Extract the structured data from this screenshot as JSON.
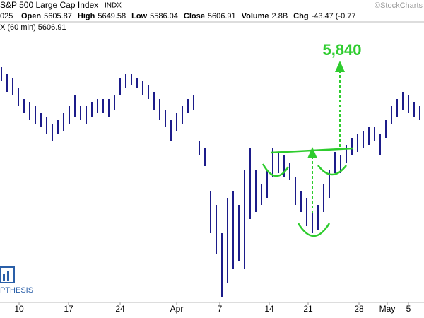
{
  "chart_data": {
    "type": "hilo",
    "title": "S&P 500 Large Cap Index",
    "exchange": "INDX",
    "watermark": "©StockCharts",
    "date_fragment": "025",
    "quote": [
      {
        "label": "Open",
        "value": "5605.87"
      },
      {
        "label": "High",
        "value": "5649.58"
      },
      {
        "label": "Low",
        "value": "5586.04"
      },
      {
        "label": "Close",
        "value": "5606.91"
      },
      {
        "label": "Volume",
        "value": "2.8B"
      },
      {
        "label": "Chg",
        "value": "-43.47 (-0.77"
      }
    ],
    "series_label": "X (60 min) 5606.91",
    "annotation": "5,840",
    "logo_text": "PTHESIS",
    "color": "#1c1c8a",
    "x": [
      0,
      1,
      2,
      3,
      4,
      5,
      6,
      7,
      8,
      9,
      10,
      11,
      12,
      13,
      14,
      15,
      16,
      17,
      18,
      19,
      20,
      21,
      22,
      23,
      24,
      25,
      26,
      27,
      28,
      29,
      30,
      31,
      32,
      33,
      34,
      35,
      36,
      37,
      38,
      39,
      40,
      41,
      42,
      43,
      44,
      45,
      46,
      47,
      48,
      49,
      50,
      51,
      52,
      53,
      54,
      55,
      56,
      57,
      58,
      59,
      60,
      61,
      62,
      63,
      64,
      65,
      66,
      67,
      68,
      69,
      70,
      71,
      72,
      73,
      74
    ],
    "highs": [
      5790,
      5760,
      5745,
      5700,
      5655,
      5640,
      5625,
      5595,
      5580,
      5550,
      5565,
      5595,
      5625,
      5670,
      5625,
      5625,
      5640,
      5655,
      5655,
      5655,
      5670,
      5745,
      5760,
      5760,
      5745,
      5730,
      5715,
      5685,
      5655,
      5610,
      5565,
      5595,
      5625,
      5655,
      5670,
      5475,
      5445,
      5265,
      5205,
      5085,
      5235,
      5265,
      5205,
      5355,
      5445,
      5355,
      5295,
      5355,
      5445,
      5430,
      5415,
      5385,
      5325,
      5265,
      5235,
      5175,
      5205,
      5295,
      5355,
      5430,
      5415,
      5460,
      5490,
      5505,
      5520,
      5535,
      5535,
      5505,
      5565,
      5625,
      5655,
      5685,
      5670,
      5640,
      5625
    ],
    "lows": [
      5730,
      5685,
      5670,
      5625,
      5595,
      5565,
      5550,
      5535,
      5505,
      5475,
      5505,
      5520,
      5550,
      5580,
      5565,
      5550,
      5580,
      5595,
      5595,
      5580,
      5610,
      5670,
      5700,
      5715,
      5700,
      5670,
      5655,
      5610,
      5565,
      5535,
      5475,
      5520,
      5550,
      5595,
      5610,
      5415,
      5370,
      5085,
      4995,
      4815,
      4875,
      4935,
      4965,
      4935,
      5145,
      5175,
      5205,
      5235,
      5325,
      5340,
      5325,
      5310,
      5205,
      5175,
      5115,
      5085,
      5100,
      5175,
      5235,
      5340,
      5340,
      5385,
      5415,
      5430,
      5445,
      5460,
      5475,
      5415,
      5490,
      5550,
      5580,
      5610,
      5595,
      5580,
      5565
    ],
    "xlim": [
      -0.25,
      74.75
    ],
    "ylim": [
      4800,
      6075
    ],
    "xticks": [
      {
        "value": 3.125,
        "label": "10"
      },
      {
        "value": 11.875,
        "label": "17"
      },
      {
        "value": 21,
        "label": "24"
      },
      {
        "value": 31,
        "label": "Apr"
      },
      {
        "value": 38.625,
        "label": "7"
      },
      {
        "value": 47.375,
        "label": "14"
      },
      {
        "value": 54.25,
        "label": "21"
      },
      {
        "value": 63.25,
        "label": "28"
      },
      {
        "value": 68.25,
        "label": "May"
      },
      {
        "value": 72,
        "label": "5"
      }
    ]
  }
}
